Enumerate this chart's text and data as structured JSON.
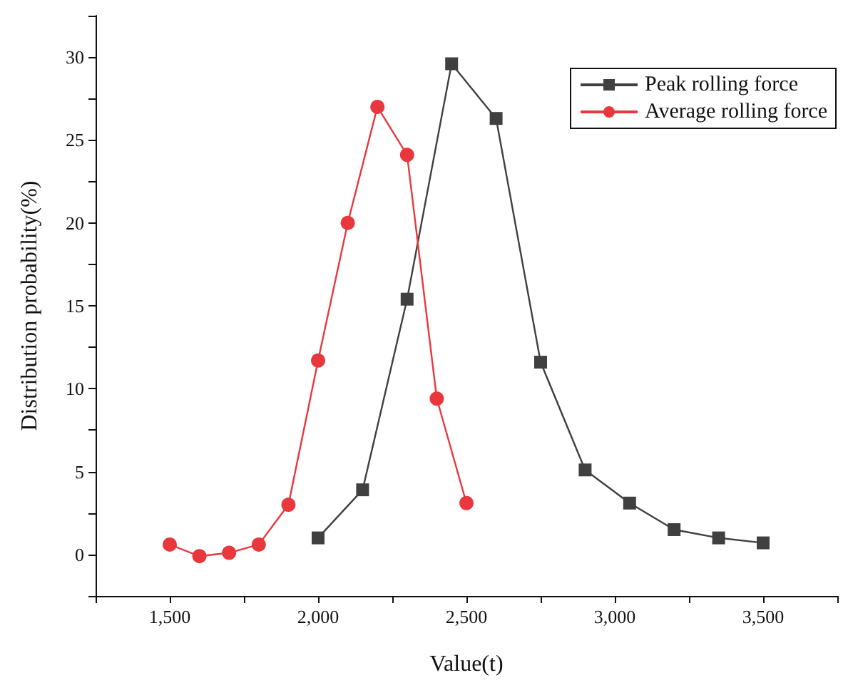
{
  "chart_data": {
    "type": "line",
    "xlabel": "Value(t)",
    "ylabel": "Distribution probability(%)",
    "xlim": [
      1250,
      3750
    ],
    "ylim": [
      -2.5,
      32.5
    ],
    "xticks": [
      {
        "value": 1250,
        "label": null
      },
      {
        "value": 1500,
        "label": "1,500"
      },
      {
        "value": 1750,
        "label": null
      },
      {
        "value": 2000,
        "label": "2,000"
      },
      {
        "value": 2250,
        "label": null
      },
      {
        "value": 2500,
        "label": "2,500"
      },
      {
        "value": 2750,
        "label": null
      },
      {
        "value": 3000,
        "label": "3,000"
      },
      {
        "value": 3250,
        "label": null
      },
      {
        "value": 3500,
        "label": "3,500"
      },
      {
        "value": 3750,
        "label": null
      }
    ],
    "yticks": [
      {
        "value": -2.5,
        "label": null
      },
      0,
      {
        "value": 2.5,
        "label": null
      },
      5,
      {
        "value": 7.5,
        "label": null
      },
      10,
      {
        "value": 12.5,
        "label": null
      },
      15,
      {
        "value": 17.5,
        "label": null
      },
      20,
      {
        "value": 22.5,
        "label": null
      },
      25,
      {
        "value": 27.5,
        "label": null
      },
      30,
      {
        "value": 32.5,
        "label": null
      }
    ],
    "series": [
      {
        "name": "Peak rolling force",
        "color": "#404040",
        "marker": "square",
        "x": [
          2000,
          2150,
          2300,
          2450,
          2600,
          2750,
          2900,
          3050,
          3200,
          3350,
          3500
        ],
        "values": [
          1.0,
          3.9,
          15.4,
          29.6,
          26.3,
          11.6,
          5.1,
          3.1,
          1.5,
          1.0,
          0.7
        ]
      },
      {
        "name": "Average rolling force",
        "color": "#e8383d",
        "marker": "circle",
        "x": [
          1500,
          1600,
          1700,
          1800,
          1900,
          2000,
          2100,
          2200,
          2300,
          2400,
          2500
        ],
        "values": [
          0.6,
          -0.1,
          0.1,
          0.6,
          3.0,
          11.7,
          20.0,
          27.0,
          24.1,
          9.4,
          3.1
        ]
      }
    ],
    "legend": "top right",
    "grid": false,
    "line_style": "solid"
  }
}
